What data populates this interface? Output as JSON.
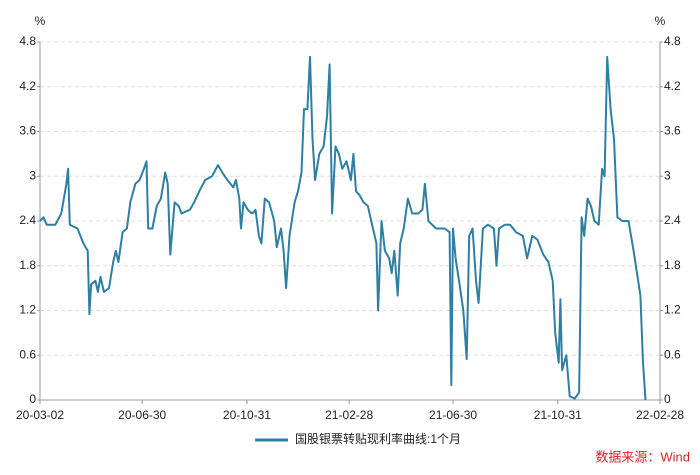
{
  "chart_data": {
    "type": "line",
    "y_unit": "%",
    "y2_unit": "%",
    "source": "数据来源：Wind",
    "x": [
      "20-03-02",
      "20-03-06",
      "20-03-10",
      "20-03-20",
      "20-03-27",
      "20-04-02",
      "20-04-04",
      "20-04-06",
      "20-04-15",
      "20-04-22",
      "20-04-27",
      "20-04-29",
      "20-05-01",
      "20-05-06",
      "20-05-09",
      "20-05-12",
      "20-05-16",
      "20-05-22",
      "20-05-27",
      "20-05-30",
      "20-06-02",
      "20-06-07",
      "20-06-12",
      "20-06-16",
      "20-06-22",
      "20-06-27",
      "20-07-02",
      "20-07-05",
      "20-07-07",
      "20-07-12",
      "20-07-17",
      "20-07-22",
      "20-07-27",
      "20-07-30",
      "20-08-02",
      "20-08-07",
      "20-08-12",
      "20-08-15",
      "20-08-25",
      "20-08-30",
      "20-09-05",
      "20-09-12",
      "20-09-20",
      "20-09-27",
      "20-10-02",
      "20-10-08",
      "20-10-15",
      "20-10-18",
      "20-10-22",
      "20-10-24",
      "20-10-27",
      "20-11-01",
      "20-11-06",
      "20-11-10",
      "20-11-14",
      "20-11-17",
      "20-11-21",
      "20-11-26",
      "20-12-02",
      "20-12-05",
      "20-12-10",
      "20-12-13",
      "20-12-16",
      "20-12-20",
      "20-12-26",
      "20-12-30",
      "21-01-03",
      "21-01-06",
      "21-01-10",
      "21-01-13",
      "21-01-16",
      "21-01-19",
      "21-01-24",
      "21-01-29",
      "21-02-02",
      "21-02-05",
      "21-02-08",
      "21-02-12",
      "21-02-16",
      "21-02-20",
      "21-02-25",
      "21-03-02",
      "21-03-05",
      "21-03-08",
      "21-03-12",
      "21-03-17",
      "21-03-22",
      "21-03-27",
      "21-04-01",
      "21-04-03",
      "21-04-07",
      "21-04-11",
      "21-04-16",
      "21-04-19",
      "21-04-22",
      "21-04-26",
      "21-04-29",
      "21-05-03",
      "21-05-08",
      "21-05-13",
      "21-05-20",
      "21-05-25",
      "21-05-28",
      "21-06-01",
      "21-06-10",
      "21-06-20",
      "21-06-26",
      "21-06-28",
      "21-06-30",
      "21-07-03",
      "21-07-07",
      "21-07-12",
      "21-07-16",
      "21-07-19",
      "21-07-23",
      "21-07-27",
      "21-07-30",
      "21-08-04",
      "21-08-10",
      "21-08-17",
      "21-08-20",
      "21-08-23",
      "21-08-30",
      "21-09-05",
      "21-09-12",
      "21-09-20",
      "21-09-25",
      "21-10-01",
      "21-10-07",
      "21-10-14",
      "21-10-20",
      "21-10-25",
      "21-10-28",
      "21-11-01",
      "21-11-03",
      "21-11-05",
      "21-11-10",
      "21-11-14",
      "21-11-20",
      "21-11-25",
      "21-11-28",
      "21-12-01",
      "21-12-05",
      "21-12-09",
      "21-12-13",
      "21-12-18",
      "21-12-22",
      "21-12-25",
      "21-12-28",
      "22-01-01",
      "22-01-05",
      "22-01-09",
      "22-01-15",
      "22-01-22",
      "22-01-28",
      "22-02-05",
      "22-02-08",
      "22-02-11"
    ],
    "series": [
      {
        "name": "国股银票转贴现利率曲线:1个月",
        "color": "#2e7fa3",
        "values": [
          2.4,
          2.45,
          2.35,
          2.35,
          2.5,
          2.9,
          3.1,
          2.35,
          2.3,
          2.1,
          2.0,
          1.15,
          1.55,
          1.6,
          1.45,
          1.65,
          1.45,
          1.5,
          1.85,
          2.0,
          1.85,
          2.25,
          2.3,
          2.65,
          2.9,
          2.95,
          3.1,
          3.2,
          2.3,
          2.3,
          2.6,
          2.7,
          3.05,
          2.9,
          1.95,
          2.65,
          2.6,
          2.5,
          2.55,
          2.65,
          2.8,
          2.95,
          3.0,
          3.15,
          3.05,
          2.95,
          2.85,
          2.95,
          2.7,
          2.3,
          2.65,
          2.55,
          2.5,
          2.55,
          2.2,
          2.1,
          2.7,
          2.65,
          2.4,
          2.05,
          2.3,
          2.0,
          1.5,
          2.2,
          2.65,
          2.8,
          3.05,
          3.9,
          3.9,
          4.6,
          3.5,
          2.95,
          3.3,
          3.4,
          3.8,
          4.5,
          2.5,
          3.4,
          3.3,
          3.1,
          3.2,
          2.95,
          3.3,
          2.8,
          2.75,
          2.65,
          2.6,
          2.35,
          2.1,
          1.2,
          2.4,
          2.0,
          1.9,
          1.7,
          2.0,
          1.4,
          2.1,
          2.3,
          2.7,
          2.5,
          2.5,
          2.55,
          2.9,
          2.4,
          2.3,
          2.3,
          2.25,
          0.2,
          2.3,
          1.9,
          1.6,
          1.2,
          0.55,
          2.2,
          2.3,
          1.6,
          1.3,
          2.3,
          2.35,
          2.3,
          1.8,
          2.3,
          2.35,
          2.35,
          2.25,
          2.2,
          1.9,
          2.2,
          2.15,
          1.95,
          1.85,
          1.6,
          0.9,
          0.5,
          1.35,
          0.4,
          0.6,
          0.05,
          0.02,
          0.1,
          2.45,
          2.2,
          2.7,
          2.6,
          2.4,
          2.35,
          3.1,
          3.0,
          4.6,
          3.9,
          3.5,
          2.45,
          2.4,
          2.4,
          2.0,
          1.4,
          0.5,
          0.0
        ]
      }
    ],
    "xticks": [
      "20-03-02",
      "20-06-30",
      "20-10-31",
      "21-02-28",
      "21-06-30",
      "21-10-31",
      "22-02-28"
    ],
    "ylim": [
      0,
      4.8
    ],
    "yticks": [
      0,
      0.6,
      1.2,
      1.8,
      2.4,
      3,
      3.6,
      4.2,
      4.8
    ],
    "y2lim": [
      0,
      4.8
    ],
    "y2ticks": [
      0,
      0.6,
      1.2,
      1.8,
      2.4,
      3,
      3.6,
      4.2,
      4.8
    ],
    "grid": true
  }
}
